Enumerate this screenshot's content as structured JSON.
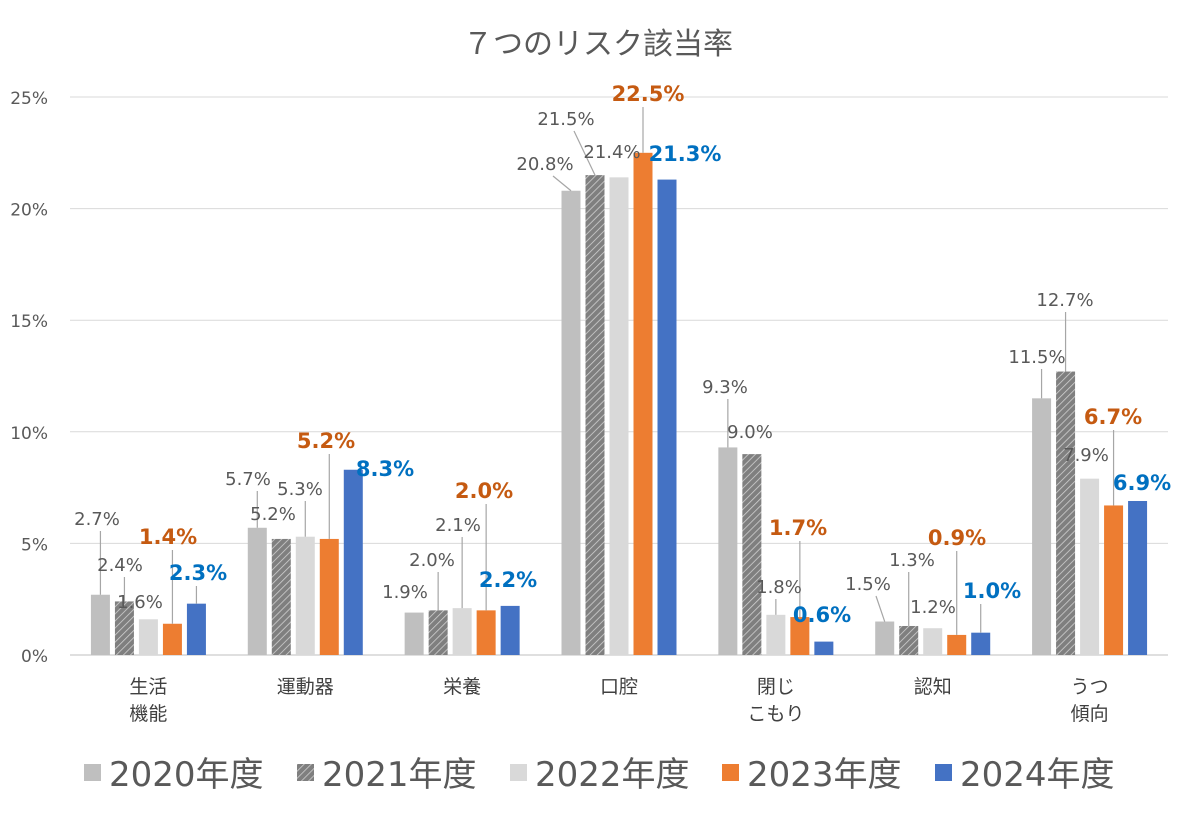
{
  "chart_data": {
    "type": "bar",
    "title": "７つのリスク該当率",
    "categories": [
      [
        "生活",
        "機能"
      ],
      [
        "運動器"
      ],
      [
        "栄養"
      ],
      [
        "口腔"
      ],
      [
        "閉じ",
        "こもり"
      ],
      [
        "認知"
      ],
      [
        "うつ",
        "傾向"
      ]
    ],
    "series": [
      {
        "name": "2020年度",
        "color": "#BFBFBF",
        "pattern": "solid",
        "label_color": "#595959",
        "values": [
          2.7,
          5.7,
          1.9,
          20.8,
          9.3,
          1.5,
          11.5
        ]
      },
      {
        "name": "2021年度",
        "color": "#7F7F7F",
        "pattern": "diagonal-hatch",
        "label_color": "#595959",
        "values": [
          2.4,
          5.2,
          2.0,
          21.5,
          9.0,
          1.3,
          12.7
        ]
      },
      {
        "name": "2022年度",
        "color": "#D9D9D9",
        "pattern": "solid",
        "label_color": "#595959",
        "values": [
          1.6,
          5.3,
          2.1,
          21.4,
          1.8,
          1.2,
          7.9
        ]
      },
      {
        "name": "2023年度",
        "color": "#ED7D31",
        "pattern": "solid",
        "label_color": "#C55A11",
        "values": [
          1.4,
          5.2,
          2.0,
          22.5,
          1.7,
          0.9,
          6.7
        ]
      },
      {
        "name": "2024年度",
        "color": "#4472C4",
        "pattern": "solid",
        "label_color": "#0070C0",
        "values": [
          2.3,
          8.3,
          2.2,
          21.3,
          0.6,
          1.0,
          6.9
        ]
      }
    ],
    "ylim": [
      0,
      25
    ],
    "yticks": [
      "0%",
      "5%",
      "10%",
      "15%",
      "20%",
      "25%"
    ],
    "grid": true,
    "legend": "bottom",
    "value_suffix": "%"
  }
}
